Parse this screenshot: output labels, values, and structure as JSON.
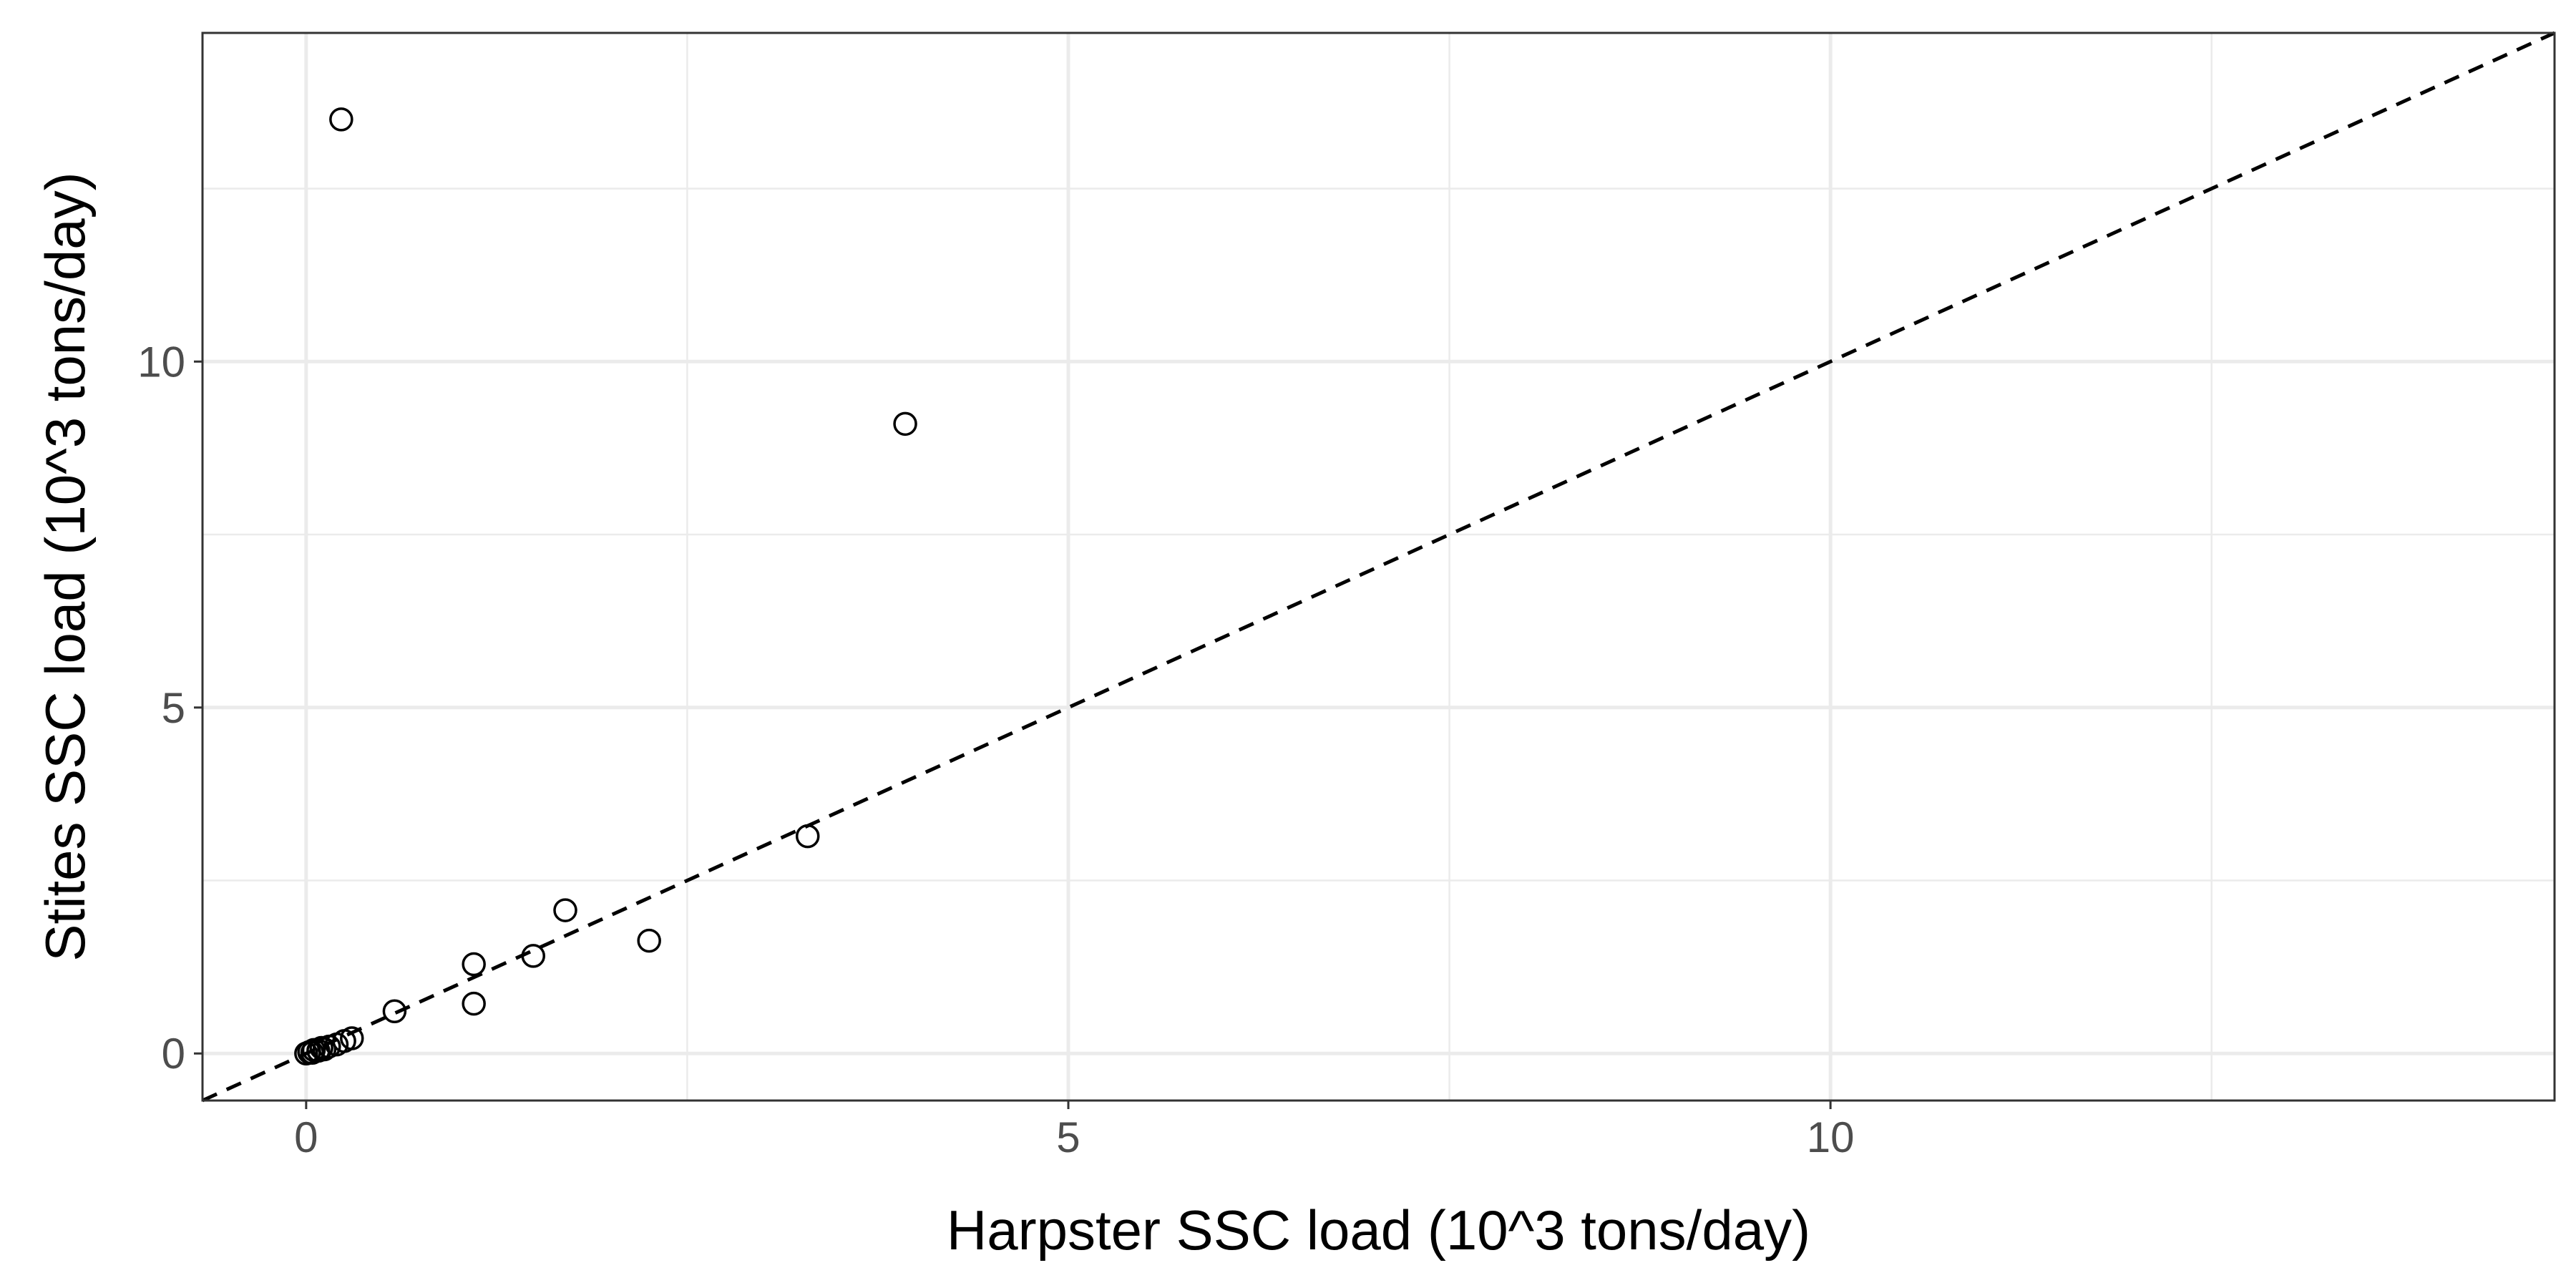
{
  "chart_data": {
    "type": "scatter",
    "title": "",
    "xlabel": "Harpster SSC load (10^3 tons/day)",
    "ylabel": "Stites SSC load (10^3 tons/day)",
    "xlim": [
      -0.68,
      14.75
    ],
    "ylim": [
      -0.68,
      14.75
    ],
    "x_ticks": [
      0,
      5,
      10
    ],
    "y_ticks": [
      0,
      5,
      10
    ],
    "x_tick_labels": [
      "0",
      "5",
      "10"
    ],
    "y_tick_labels": [
      "0",
      "5",
      "10"
    ],
    "grid": true,
    "reference_line": {
      "slope": 1,
      "intercept": 0,
      "style": "dashed"
    },
    "series": [
      {
        "marker": "open-circle",
        "points": [
          {
            "x": 0.0,
            "y": 0.0
          },
          {
            "x": 0.02,
            "y": 0.02
          },
          {
            "x": 0.04,
            "y": 0.01
          },
          {
            "x": 0.05,
            "y": 0.05
          },
          {
            "x": 0.08,
            "y": 0.04
          },
          {
            "x": 0.1,
            "y": 0.08
          },
          {
            "x": 0.12,
            "y": 0.06
          },
          {
            "x": 0.15,
            "y": 0.1
          },
          {
            "x": 0.2,
            "y": 0.13
          },
          {
            "x": 0.25,
            "y": 0.18
          },
          {
            "x": 0.3,
            "y": 0.22
          },
          {
            "x": 0.58,
            "y": 0.61
          },
          {
            "x": 1.1,
            "y": 0.72
          },
          {
            "x": 1.1,
            "y": 1.29
          },
          {
            "x": 1.49,
            "y": 1.41
          },
          {
            "x": 1.7,
            "y": 2.07
          },
          {
            "x": 2.25,
            "y": 1.63
          },
          {
            "x": 3.29,
            "y": 3.14
          },
          {
            "x": 3.93,
            "y": 9.1
          },
          {
            "x": 0.23,
            "y": 13.5
          }
        ]
      }
    ],
    "colors": {
      "background": "#ffffff",
      "grid": "#ebebeb",
      "panel_border": "#333333",
      "marker": "#000000",
      "reference_line": "#000000",
      "tick_label": "#4d4d4d"
    }
  }
}
